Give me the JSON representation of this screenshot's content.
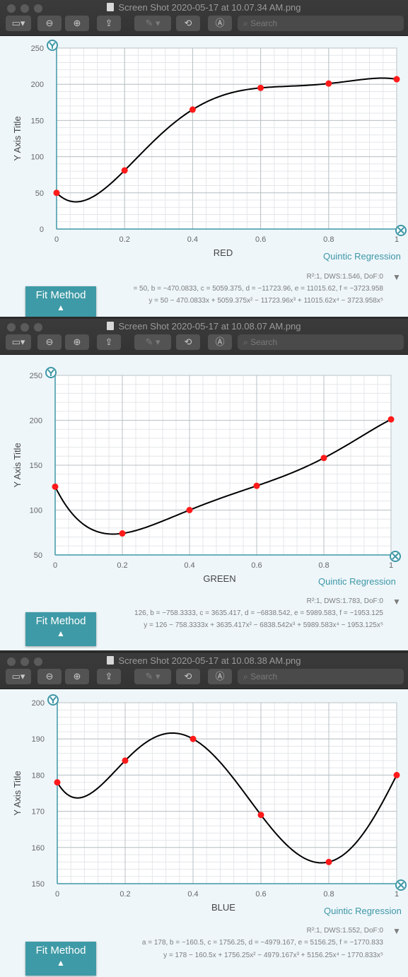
{
  "windows": [
    {
      "title": "Screen Shot 2020-05-17 at 10.07.34 AM.png",
      "search_placeholder": "Search",
      "regression_label": "Quintic Regression",
      "stats": "R²:1, DWS:1.546, DoF:0",
      "coefficients": "= 50, b = −470.0833, c = 5059.375, d = −11723.96, e = 11015.62, f = −3723.958",
      "equation": "y = 50 − 470.0833x + 5059.375x² − 11723.96x³ + 11015.62x⁴ − 3723.958x⁵",
      "fit_method_label": "Fit Method"
    },
    {
      "title": "Screen Shot 2020-05-17 at 10.08.07 AM.png",
      "search_placeholder": "Search",
      "regression_label": "Quintic Regression",
      "stats": "R²:1, DWS:1.783, DoF:0",
      "coefficients": "126, b = −758.3333, c = 3635.417, d = −6838.542, e = 5989.583, f = −1953.125",
      "equation": "y = 126 − 758.3333x + 3635.417x² − 6838.542x³ + 5989.583x⁴ − 1953.125x⁵",
      "fit_method_label": "Fit Method"
    },
    {
      "title": "Screen Shot 2020-05-17 at 10.08.38 AM.png",
      "search_placeholder": "Search",
      "regression_label": "Quintic Regression",
      "stats": "R²:1, DWS:1.552, DoF:0",
      "coefficients": "a = 178, b = −160.5, c = 1756.25, d = −4979.167, e = 5156.25, f = −1770.833",
      "equation": "y = 178 − 160.5x + 1756.25x² − 4979.167x³ + 5156.25x⁴ − 1770.833x⁵",
      "fit_method_label": "Fit Method"
    }
  ],
  "chart_data": [
    {
      "type": "scatter",
      "xlabel": "RED",
      "ylabel": "Y Axis Title",
      "xlim": [
        0,
        1
      ],
      "ylim": [
        0,
        250
      ],
      "xticks": [
        "0",
        "0.2",
        "0.4",
        "0.6",
        "0.8",
        "1"
      ],
      "yticks": [
        "0",
        "50",
        "100",
        "150",
        "200",
        "250"
      ],
      "x": [
        0,
        0.2,
        0.4,
        0.6,
        0.8,
        1
      ],
      "y": [
        50,
        81,
        165,
        195,
        201,
        207
      ],
      "fit": {
        "type": "quintic",
        "coefficients": [
          50,
          -470.0833,
          5059.375,
          -11723.96,
          11015.62,
          -3723.958
        ]
      },
      "grid": true,
      "point_color": "#ff1a1a",
      "line_color": "#000000"
    },
    {
      "type": "scatter",
      "xlabel": "GREEN",
      "ylabel": "Y Axis Title",
      "xlim": [
        0,
        1
      ],
      "ylim": [
        50,
        250
      ],
      "xticks": [
        "0",
        "0.2",
        "0.4",
        "0.6",
        "0.8",
        "1"
      ],
      "yticks": [
        "50",
        "100",
        "150",
        "200",
        "250"
      ],
      "x": [
        0,
        0.2,
        0.4,
        0.6,
        0.8,
        1
      ],
      "y": [
        126,
        74,
        100,
        127,
        158,
        201
      ],
      "fit": {
        "type": "quintic",
        "coefficients": [
          126,
          -758.3333,
          3635.417,
          -6838.542,
          5989.583,
          -1953.125
        ]
      },
      "grid": true,
      "point_color": "#ff1a1a",
      "line_color": "#000000"
    },
    {
      "type": "scatter",
      "xlabel": "BLUE",
      "ylabel": "Y Axis Title",
      "xlim": [
        0,
        1
      ],
      "ylim": [
        150,
        200
      ],
      "xticks": [
        "0",
        "0.2",
        "0.4",
        "0.6",
        "0.8",
        "1"
      ],
      "yticks": [
        "150",
        "160",
        "170",
        "180",
        "190",
        "200"
      ],
      "x": [
        0,
        0.2,
        0.4,
        0.6,
        0.8,
        1
      ],
      "y": [
        178,
        184,
        190,
        169,
        156,
        180
      ],
      "fit": {
        "type": "quintic",
        "coefficients": [
          178,
          -160.5,
          1756.25,
          -4979.167,
          5156.25,
          -1770.833
        ]
      },
      "grid": true,
      "point_color": "#ff1a1a",
      "line_color": "#000000"
    }
  ]
}
